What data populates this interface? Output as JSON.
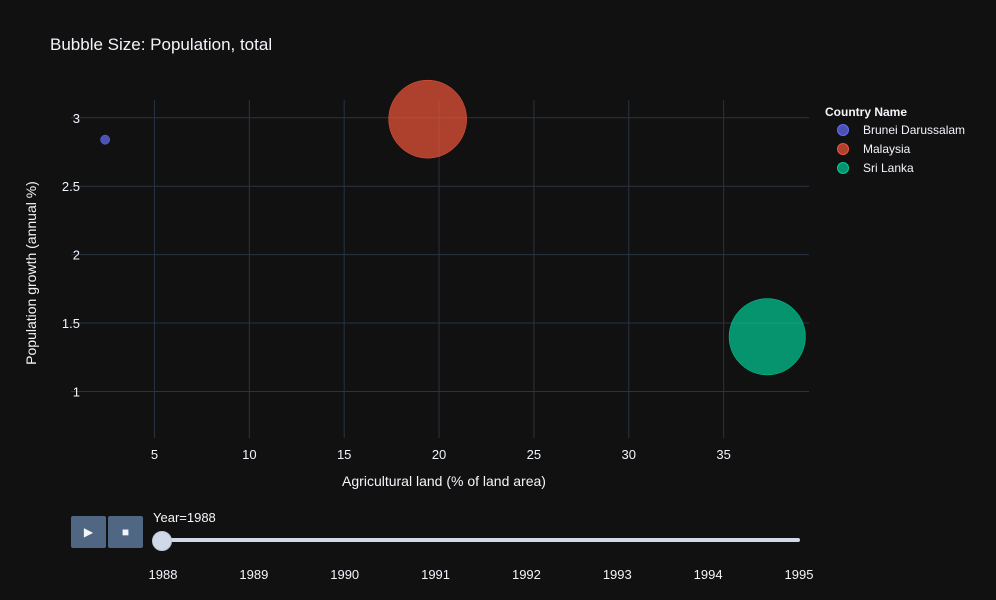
{
  "chart_data": {
    "type": "scatter",
    "title": "Bubble Size: Population, total",
    "xlabel": "Agricultural land (% of land area)",
    "ylabel": "Population growth (annual %)",
    "xlim": [
      0.6,
      39.5
    ],
    "ylim": [
      0.66,
      3.13
    ],
    "xticks": [
      5,
      10,
      15,
      20,
      25,
      30,
      35
    ],
    "yticks": [
      1,
      1.5,
      2,
      2.5,
      3
    ],
    "grid": true,
    "legend_title": "Country Name",
    "legend_position": "right",
    "series": [
      {
        "name": "Brunei Darussalam",
        "color": "#636efa",
        "x": [
          2.4
        ],
        "y": [
          2.84
        ],
        "size": [
          0.24
        ]
      },
      {
        "name": "Malaysia",
        "color": "#ef553b",
        "x": [
          19.4
        ],
        "y": [
          2.99
        ],
        "size": [
          17.3
        ]
      },
      {
        "name": "Sri Lanka",
        "color": "#00cc96",
        "x": [
          37.3
        ],
        "y": [
          1.4
        ],
        "size": [
          16.6
        ]
      }
    ]
  },
  "slider": {
    "label": "Year=1988",
    "steps": [
      "1988",
      "1989",
      "1990",
      "1991",
      "1992",
      "1993",
      "1994",
      "1995"
    ],
    "current_index": 0
  },
  "controls": {
    "play_icon": "play-icon",
    "stop_icon": "stop-icon"
  }
}
